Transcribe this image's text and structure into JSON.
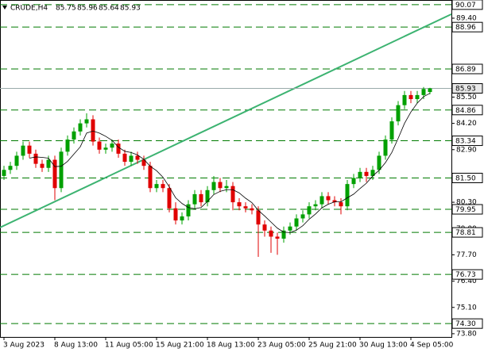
{
  "chart_data": {
    "type": "candlestick",
    "title": "CRUDE,H4",
    "categories": [
      "3 Aug 2023",
      null,
      null,
      null,
      null,
      null,
      null,
      null,
      "8 Aug 13:00",
      null,
      null,
      null,
      null,
      null,
      null,
      null,
      "11 Aug 05:00",
      null,
      null,
      null,
      null,
      null,
      null,
      null,
      "15 Aug 21:00",
      null,
      null,
      null,
      null,
      null,
      null,
      null,
      "18 Aug 13:00",
      null,
      null,
      null,
      null,
      null,
      null,
      null,
      "23 Aug 05:00",
      null,
      null,
      null,
      null,
      null,
      null,
      null,
      "25 Aug 21:00",
      null,
      null,
      null,
      null,
      null,
      null,
      null,
      "30 Aug 13:00",
      null,
      null,
      null,
      null,
      null,
      null,
      null,
      "4 Sep 05:00",
      null,
      null,
      null
    ],
    "open": [
      81.6,
      81.9,
      82.1,
      82.6,
      83.1,
      82.7,
      82.2,
      82.0,
      82.4,
      81.0,
      82.8,
      83.4,
      83.8,
      84.2,
      84.4,
      83.3,
      82.9,
      83.0,
      83.2,
      82.7,
      82.3,
      82.6,
      82.4,
      82.1,
      81.0,
      81.2,
      81.0,
      80.0,
      79.4,
      79.6,
      80.2,
      80.7,
      80.3,
      80.9,
      81.3,
      81.0,
      81.1,
      80.3,
      80.1,
      80.0,
      79.9,
      79.2,
      78.9,
      78.6,
      78.5,
      78.9,
      79.1,
      79.5,
      79.7,
      80.1,
      80.2,
      80.6,
      80.4,
      80.3,
      80.1,
      81.2,
      81.5,
      81.8,
      81.6,
      81.9,
      82.6,
      83.4,
      84.3,
      85.1,
      85.6,
      85.4,
      85.6,
      85.75
    ],
    "high": [
      82.1,
      82.3,
      82.8,
      83.3,
      83.3,
      82.9,
      82.4,
      82.6,
      82.6,
      83.0,
      83.6,
      84.0,
      84.4,
      84.7,
      84.6,
      83.5,
      83.2,
      83.4,
      83.4,
      82.9,
      82.8,
      82.8,
      82.6,
      82.3,
      81.4,
      81.4,
      81.2,
      80.3,
      79.8,
      80.4,
      80.9,
      80.9,
      81.1,
      81.6,
      81.5,
      81.4,
      81.3,
      80.5,
      80.3,
      80.2,
      80.1,
      79.4,
      79.1,
      78.8,
      79.1,
      79.3,
      79.7,
      79.9,
      80.3,
      80.4,
      80.8,
      80.8,
      80.6,
      80.5,
      81.4,
      81.7,
      82.0,
      82.0,
      82.1,
      82.8,
      83.6,
      84.5,
      85.3,
      85.8,
      85.8,
      85.8,
      86.0,
      85.96
    ],
    "low": [
      81.4,
      81.7,
      81.9,
      82.4,
      82.5,
      82.0,
      81.8,
      81.8,
      80.4,
      80.8,
      82.6,
      83.2,
      83.6,
      84.0,
      83.1,
      82.7,
      82.7,
      82.8,
      82.5,
      82.1,
      82.1,
      82.2,
      81.9,
      80.8,
      80.8,
      80.8,
      79.8,
      79.2,
      79.2,
      79.4,
      80.0,
      80.1,
      80.1,
      80.7,
      80.8,
      80.8,
      79.9,
      79.9,
      79.8,
      79.7,
      77.6,
      78.6,
      77.8,
      77.7,
      78.3,
      78.7,
      78.9,
      79.3,
      79.5,
      79.9,
      80.0,
      80.2,
      80.1,
      79.7,
      79.9,
      81.0,
      81.3,
      81.3,
      81.4,
      81.7,
      82.4,
      83.2,
      84.1,
      84.9,
      85.2,
      85.2,
      85.4,
      85.64
    ],
    "close": [
      81.9,
      82.1,
      82.6,
      83.1,
      82.7,
      82.2,
      82.0,
      82.4,
      81.0,
      82.8,
      83.4,
      83.8,
      84.2,
      84.4,
      83.3,
      82.9,
      83.0,
      83.2,
      82.7,
      82.3,
      82.6,
      82.4,
      82.1,
      81.0,
      81.2,
      81.0,
      80.0,
      79.4,
      79.6,
      80.2,
      80.7,
      80.3,
      80.9,
      81.3,
      81.0,
      81.1,
      80.3,
      80.1,
      80.0,
      79.9,
      79.2,
      78.9,
      78.6,
      78.5,
      78.9,
      79.1,
      79.5,
      79.7,
      80.1,
      80.2,
      80.6,
      80.4,
      80.3,
      80.1,
      81.2,
      81.5,
      81.8,
      81.6,
      81.9,
      82.6,
      83.4,
      84.3,
      85.1,
      85.6,
      85.4,
      85.6,
      85.9,
      85.93
    ],
    "up_color": "#00a000",
    "down_color": "#e00000",
    "ylim": [
      73.64,
      90.3
    ],
    "yticks": [
      {
        "value": 89.4,
        "label": "89.40"
      },
      {
        "value": 85.5,
        "label": "85.50"
      },
      {
        "value": 84.2,
        "label": "84.20"
      },
      {
        "value": 82.9,
        "label": "82.90"
      },
      {
        "value": 80.3,
        "label": "80.30"
      },
      {
        "value": 79,
        "label": "79.00"
      },
      {
        "value": 77.7,
        "label": "77.70"
      },
      {
        "value": 76.4,
        "label": "76.40"
      },
      {
        "value": 75.1,
        "label": "75.10"
      },
      {
        "value": 73.8,
        "label": "73.80"
      }
    ],
    "levels": [
      90.07,
      88.96,
      86.89,
      84.86,
      83.34,
      {
        "value": 81.5,
        "label": "81.50"
      },
      79.95,
      78.81,
      76.73,
      {
        "value": 74.3,
        "label": "74.30"
      }
    ],
    "level_color": "#007a00",
    "trendline": {
      "values": [
        79.05,
        89.6
      ],
      "color": "#3cb371"
    }
  }
}
